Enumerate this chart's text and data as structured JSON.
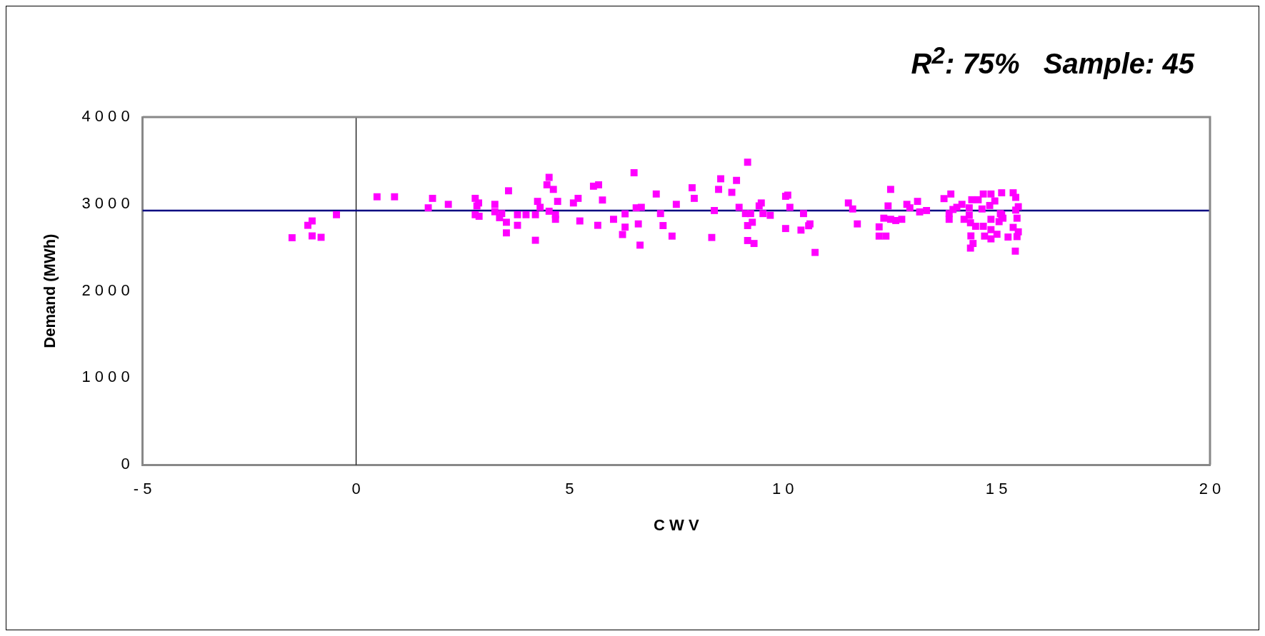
{
  "chart_data": {
    "type": "scatter",
    "title": "R$^{2}$: 75%   Sample: 45",
    "xlabel": "C W V",
    "ylabel": "Demand (MWh)",
    "xlim": [
      -5,
      20
    ],
    "xticks": [
      -5,
      0,
      5,
      10,
      15,
      20
    ],
    "ylim": [
      0,
      4000
    ],
    "yticks": [
      0,
      1000,
      2000,
      3000,
      4000
    ],
    "grid": false,
    "legend": false,
    "marker": "square",
    "ref_lines": [
      {
        "axis": "x",
        "value": 0,
        "color": "#000000"
      },
      {
        "axis": "y",
        "value": 2925,
        "color": "#000080"
      }
    ],
    "series": [
      {
        "color": "#ff00ff",
        "x": [
          -1.5,
          -1.03,
          -0.82,
          -1.13,
          -1.03,
          -0.46,
          0.49,
          0.9,
          1.79,
          1.69,
          2.16,
          2.79,
          2.87,
          2.83,
          2.79,
          2.88,
          3.25,
          3.25,
          3.41,
          3.36,
          3.52,
          3.52,
          3.57,
          3.78,
          3.98,
          3.78,
          4.2,
          4.2,
          4.25,
          4.31,
          4.52,
          4.47,
          4.62,
          4.52,
          4.67,
          4.67,
          4.72,
          5.09,
          5.2,
          5.24,
          5.56,
          5.68,
          5.77,
          5.66,
          6.03,
          6.3,
          6.3,
          6.24,
          6.51,
          6.61,
          6.65,
          6.56,
          6.68,
          7.03,
          7.13,
          7.19,
          7.4,
          7.5,
          7.87,
          7.92,
          8.39,
          8.33,
          8.54,
          8.49,
          8.91,
          8.8,
          9.17,
          8.97,
          9.12,
          9.24,
          9.17,
          9.28,
          9.17,
          9.32,
          9.44,
          9.49,
          9.53,
          9.7,
          10.06,
          10.11,
          10.16,
          10.06,
          10.48,
          10.42,
          10.63,
          10.6,
          10.75,
          11.53,
          11.63,
          11.74,
          12.52,
          12.46,
          12.36,
          12.52,
          12.64,
          12.25,
          12.25,
          12.41,
          12.78,
          12.9,
          12.97,
          13.15,
          13.2,
          13.36,
          13.77,
          13.93,
          13.89,
          13.89,
          13.98,
          14.19,
          14.07,
          14.36,
          14.24,
          14.36,
          14.39,
          14.4,
          14.45,
          14.39,
          14.42,
          14.57,
          14.69,
          14.87,
          14.66,
          14.84,
          14.96,
          14.87,
          14.51,
          14.69,
          14.87,
          14.72,
          14.87,
          15.01,
          15.12,
          15.15,
          15.06,
          15.12,
          15.39,
          15.45,
          15.51,
          15.48,
          15.39,
          15.51,
          15.27,
          15.48,
          15.44,
          15.09,
          15.45
        ],
        "values": [
          2612,
          2633,
          2617,
          2755,
          2805,
          2877,
          3083,
          3083,
          3065,
          2956,
          2996,
          3065,
          3012,
          2978,
          2877,
          2859,
          2996,
          2911,
          2890,
          2843,
          2790,
          2668,
          3152,
          2877,
          2877,
          2755,
          2877,
          2583,
          3030,
          2962,
          3306,
          3221,
          3168,
          2917,
          2877,
          2824,
          3030,
          3012,
          3065,
          2805,
          3205,
          3221,
          3046,
          2755,
          2824,
          2887,
          2734,
          2649,
          3359,
          2771,
          2527,
          2956,
          2962,
          3115,
          2890,
          2752,
          2631,
          2996,
          3187,
          3065,
          2925,
          2615,
          3290,
          3168,
          3271,
          3134,
          3481,
          2962,
          2890,
          2890,
          2752,
          2790,
          2580,
          2546,
          2978,
          3012,
          2890,
          2870,
          3089,
          3102,
          2962,
          2718,
          2890,
          2700,
          2771,
          2750,
          2443,
          3012,
          2943,
          2771,
          3168,
          2978,
          2837,
          2824,
          2810,
          2737,
          2631,
          2631,
          2824,
          2996,
          2956,
          3030,
          2909,
          2925,
          3062,
          3115,
          2890,
          2824,
          2937,
          2996,
          2962,
          2956,
          2824,
          2870,
          2784,
          2633,
          2546,
          2493,
          3049,
          3049,
          3115,
          3115,
          2943,
          2983,
          3035,
          2824,
          2744,
          2744,
          2705,
          2631,
          2599,
          2652,
          2877,
          2837,
          2797,
          3129,
          3129,
          3076,
          2969,
          2837,
          2731,
          2680,
          2620,
          2625,
          2458,
          2890,
          2930
        ]
      }
    ]
  }
}
